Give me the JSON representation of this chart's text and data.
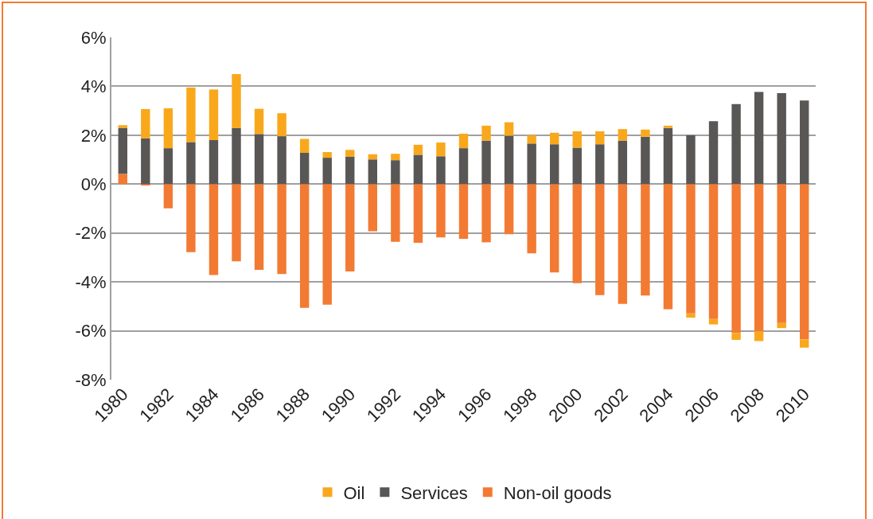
{
  "chart_data": {
    "type": "bar",
    "stacked": true,
    "categories": [
      "1980",
      null,
      "1982",
      null,
      "1984",
      null,
      "1986",
      null,
      "1988",
      null,
      "1990",
      null,
      "1992",
      null,
      "1994",
      null,
      "1996",
      null,
      "1998",
      null,
      "2000",
      null,
      "2002",
      null,
      "2004",
      null,
      "2006",
      null,
      "2008",
      null,
      "2010"
    ],
    "series": [
      {
        "name": "Non-oil goods",
        "color": "#f37a33",
        "values": [
          0.42,
          -0.05,
          -0.99,
          -2.78,
          -3.72,
          -3.16,
          -3.51,
          -3.68,
          -5.06,
          -4.93,
          -3.57,
          -1.93,
          -2.36,
          -2.4,
          -2.18,
          -2.24,
          -2.38,
          -2.05,
          -2.83,
          -3.61,
          -4.05,
          -4.54,
          -4.9,
          -4.56,
          -5.12,
          -5.29,
          -5.52,
          -6.09,
          -6.02,
          -5.68,
          -6.35
        ]
      },
      {
        "name": "Services",
        "color": "#595755",
        "values": [
          1.87,
          1.87,
          1.47,
          1.72,
          1.8,
          2.29,
          2.05,
          1.96,
          1.28,
          1.08,
          1.12,
          1.01,
          0.98,
          1.2,
          1.14,
          1.47,
          1.78,
          1.98,
          1.66,
          1.63,
          1.49,
          1.63,
          1.78,
          1.94,
          2.3,
          2.0,
          2.57,
          3.27,
          3.77,
          3.72,
          3.42
        ]
      },
      {
        "name": "Oil",
        "color": "#f9a81c",
        "values": [
          0.12,
          1.2,
          1.63,
          2.23,
          2.07,
          2.21,
          1.03,
          0.94,
          0.57,
          0.23,
          0.28,
          0.21,
          0.26,
          0.41,
          0.56,
          0.59,
          0.61,
          0.55,
          0.34,
          0.47,
          0.67,
          0.53,
          0.47,
          0.29,
          0.09,
          -0.17,
          -0.22,
          -0.28,
          -0.4,
          -0.21,
          -0.34
        ]
      }
    ],
    "ylim": [
      -8,
      6
    ],
    "yticks": [
      {
        "value": -8,
        "label": "-8%"
      },
      {
        "value": -6,
        "label": "-6%"
      },
      {
        "value": -4,
        "label": "-4%"
      },
      {
        "value": -2,
        "label": "-2%"
      },
      {
        "value": 0,
        "label": "0%"
      },
      {
        "value": 2,
        "label": "2%"
      },
      {
        "value": 4,
        "label": "4%"
      },
      {
        "value": 6,
        "label": "6%"
      }
    ],
    "grid": "y",
    "legend": "bottom"
  }
}
